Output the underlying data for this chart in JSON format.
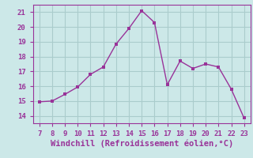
{
  "x": [
    7,
    8,
    9,
    10,
    11,
    12,
    13,
    14,
    15,
    16,
    17,
    18,
    19,
    20,
    21,
    22,
    23
  ],
  "y": [
    14.95,
    15.0,
    15.45,
    15.95,
    16.8,
    17.3,
    18.85,
    19.9,
    21.1,
    20.3,
    16.1,
    17.7,
    17.2,
    17.5,
    17.3,
    15.8,
    13.85
  ],
  "line_color": "#993399",
  "marker_color": "#993399",
  "bg_color": "#cce8e8",
  "grid_color": "#aacccc",
  "xlabel": "Windchill (Refroidissement éolien,°C)",
  "xlabel_color": "#993399",
  "tick_color": "#993399",
  "spine_color": "#993399",
  "ylim": [
    13.5,
    21.5
  ],
  "xlim": [
    6.5,
    23.5
  ],
  "yticks": [
    14,
    15,
    16,
    17,
    18,
    19,
    20,
    21
  ],
  "xticks": [
    7,
    8,
    9,
    10,
    11,
    12,
    13,
    14,
    15,
    16,
    17,
    18,
    19,
    20,
    21,
    22,
    23
  ]
}
